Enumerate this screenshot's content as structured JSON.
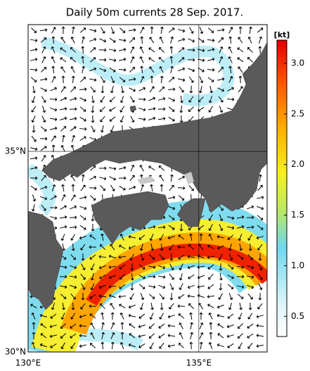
{
  "title": "Daily 50m currents 28 Sep. 2017.",
  "map": {
    "lon_lim": [
      130,
      137
    ],
    "lat_lim": [
      30,
      38.16
    ],
    "lon_ticks": [
      {
        "value": 130,
        "label": "130°E"
      },
      {
        "value": 135,
        "label": "135°E"
      }
    ],
    "lat_ticks": [
      {
        "value": 35,
        "label": "35°N"
      },
      {
        "value": 30,
        "label": "30°N"
      }
    ]
  },
  "colorbar": {
    "unit": "[kt]",
    "lim": [
      0.3,
      3.23
    ],
    "ticks": [
      0.5,
      {
        "value": 1,
        "label": "1.0"
      },
      1.5,
      {
        "value": 2,
        "label": "2.0"
      },
      2.5,
      {
        "value": 3,
        "label": "3.0"
      }
    ]
  }
}
